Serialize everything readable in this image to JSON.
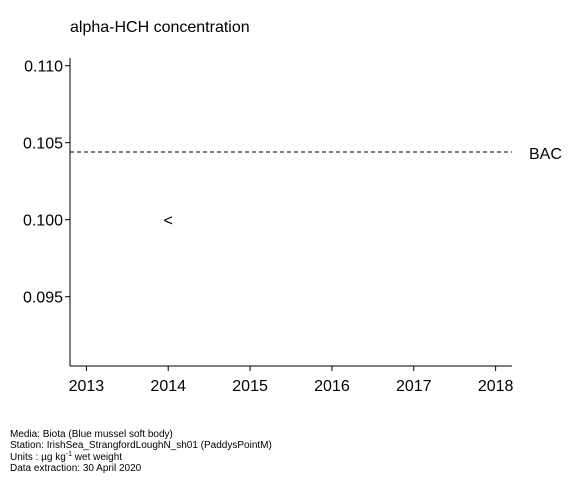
{
  "chart_data": {
    "type": "scatter",
    "title": "alpha-HCH concentration",
    "xlabel": "",
    "ylabel": "",
    "x_ticks": [
      "2013",
      "2014",
      "2015",
      "2016",
      "2017",
      "2018"
    ],
    "y_ticks": [
      "0.110",
      "0.105",
      "0.100",
      "0.095"
    ],
    "xlim": [
      2012.8,
      2018.2
    ],
    "ylim": [
      0.0905,
      0.1105
    ],
    "points": [
      {
        "x": 2014,
        "y": 0.1,
        "marker": "<",
        "label": "<"
      }
    ],
    "reference_lines": [
      {
        "label": "BAC",
        "y": 0.1044,
        "style": "dashed"
      }
    ],
    "grid": false
  },
  "footer": {
    "media": "Media: Biota (Blue mussel soft body)",
    "station": "Station: IrishSea_StrangfordLoughN_sh01 (PaddysPointM)",
    "units_prefix": "Units : µg kg",
    "units_sup": "-1",
    "units_suffix": " wet weight",
    "extraction": "Data extraction: 30 April 2020"
  }
}
